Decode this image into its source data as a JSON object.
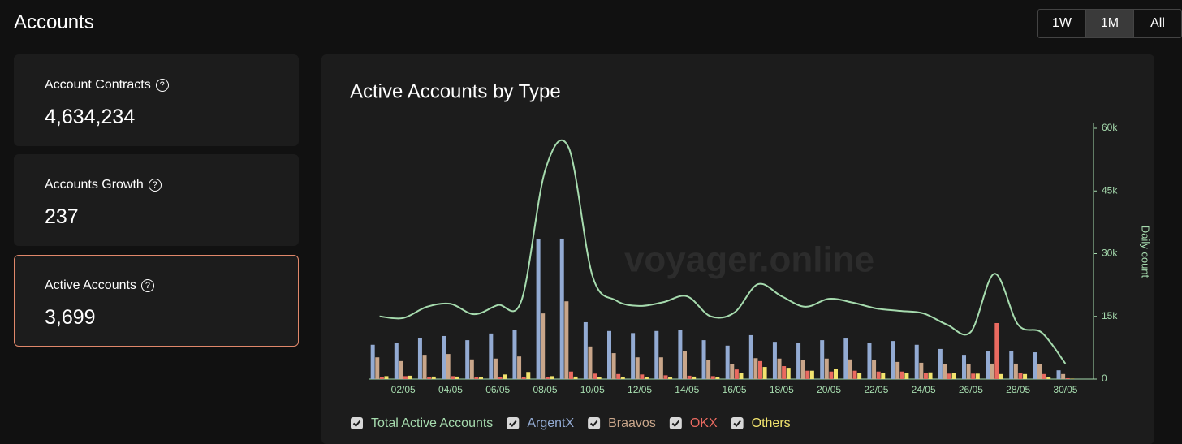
{
  "header": {
    "title": "Accounts",
    "time_buttons": [
      "1W",
      "1M",
      "All"
    ],
    "selected_button": 1
  },
  "cards": [
    {
      "label": "Account Contracts",
      "value": "4,634,234"
    },
    {
      "label": "Accounts Growth",
      "value": "237"
    },
    {
      "label": "Active Accounts",
      "value": "3,699"
    }
  ],
  "selected_card": 2,
  "chart_data": {
    "type": "bar",
    "title": "Active Accounts by Type",
    "watermark": "voyager.online",
    "y_label": "Daily count",
    "categories": [
      null,
      "02/05",
      null,
      "04/05",
      null,
      "06/05",
      null,
      "08/05",
      null,
      "10/05",
      null,
      "12/05",
      null,
      "14/05",
      null,
      "16/05",
      null,
      "18/05",
      null,
      "20/05",
      null,
      "22/05",
      null,
      "24/05",
      null,
      "26/05",
      null,
      "28/05",
      null,
      "30/05"
    ],
    "ylim": [
      0,
      60000
    ],
    "yticks": [
      0,
      {
        "value": 15000,
        "label": "15k"
      },
      {
        "value": 30000,
        "label": "30k"
      },
      {
        "value": 45000,
        "label": "45k"
      },
      {
        "value": 60000,
        "label": "60k"
      }
    ],
    "series": [
      {
        "name": "Total Active Accounts",
        "type": "line",
        "color": "#a6dbae",
        "values": [
          15000,
          14600,
          17300,
          18000,
          15500,
          17700,
          18800,
          49900,
          55300,
          24700,
          18800,
          17500,
          18400,
          19800,
          15000,
          15900,
          22700,
          19800,
          17300,
          19200,
          18300,
          16900,
          16300,
          15700,
          13000,
          11300,
          25200,
          13000,
          11100,
          3700
        ]
      },
      {
        "name": "ArgentX",
        "color": "#93abd3",
        "values": [
          8200,
          8700,
          9900,
          10300,
          9300,
          10900,
          11800,
          33400,
          33600,
          13600,
          11500,
          11000,
          11500,
          11800,
          9300,
          8000,
          10500,
          8900,
          8700,
          9300,
          9700,
          8700,
          9100,
          8200,
          7200,
          5800,
          6600,
          6800,
          6400,
          2100
        ]
      },
      {
        "name": "Braavos",
        "color": "#c9a68a",
        "values": [
          5200,
          4300,
          5800,
          6000,
          4700,
          4900,
          5400,
          15700,
          18600,
          7800,
          6200,
          5200,
          5200,
          6600,
          4500,
          3500,
          5000,
          4900,
          4500,
          4900,
          4700,
          4500,
          4100,
          3900,
          3500,
          3500,
          3700,
          3700,
          3500,
          1200
        ]
      },
      {
        "name": "OKX",
        "color": "#ea6a60",
        "values": [
          400,
          700,
          500,
          700,
          500,
          400,
          500,
          400,
          1800,
          1300,
          1200,
          1100,
          900,
          800,
          700,
          2300,
          4300,
          3100,
          2000,
          1800,
          2000,
          1800,
          1800,
          1500,
          1300,
          1300,
          13400,
          1500,
          1200,
          200
        ]
      },
      {
        "name": "Others",
        "color": "#f2e46e",
        "values": [
          700,
          800,
          600,
          600,
          500,
          1100,
          1700,
          700,
          600,
          500,
          500,
          400,
          500,
          600,
          400,
          1500,
          2900,
          2700,
          2000,
          2400,
          1500,
          1500,
          1500,
          1600,
          1400,
          1300,
          1200,
          1200,
          400,
          100
        ]
      }
    ]
  }
}
